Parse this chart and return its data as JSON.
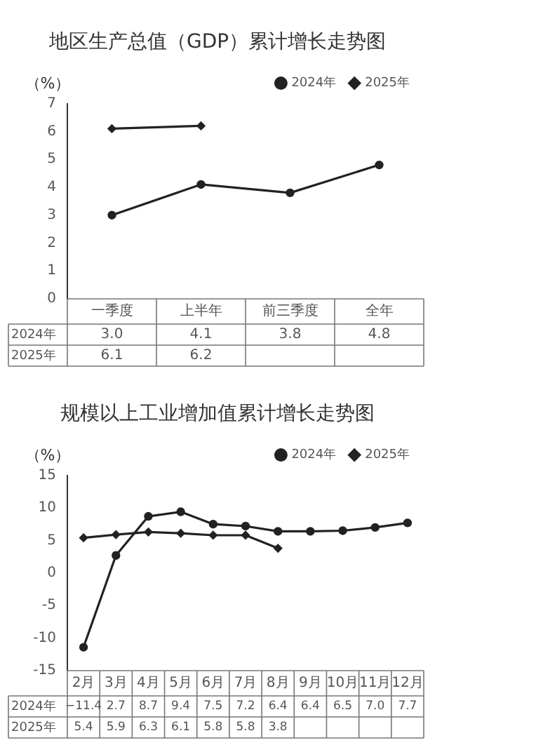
{
  "chart_data": [
    {
      "type": "line",
      "title": "地区生产总值（GDP）累计增长走势图",
      "ylabel": "（%）",
      "categories": [
        "一季度",
        "上半年",
        "前三季度",
        "全年"
      ],
      "ylim": [
        0,
        7
      ],
      "yticks": [
        0,
        1,
        2,
        3,
        4,
        5,
        6,
        7
      ],
      "grid": false,
      "legend": "top right",
      "line_style": "solid",
      "series": [
        {
          "name": "2024年",
          "color": "#222222",
          "marker": "circle",
          "values": [
            3.0,
            4.1,
            3.8,
            4.8
          ],
          "value_labels": [
            "3.0",
            "4.1",
            "3.8",
            "4.8"
          ]
        },
        {
          "name": "2025年",
          "color": "#222222",
          "marker": "diamond",
          "values": [
            6.1,
            6.2,
            null,
            null
          ],
          "value_labels": [
            "6.1",
            "6.2",
            null,
            null
          ]
        }
      ]
    },
    {
      "type": "line",
      "title": "规模以上工业增加值累计增长走势图",
      "ylabel": "（%）",
      "categories": [
        "2月",
        "3月",
        "4月",
        "5月",
        "6月",
        "7月",
        "8月",
        "9月",
        "10月",
        "11月",
        "12月"
      ],
      "ylim": [
        -15,
        15
      ],
      "yticks": [
        -15,
        -10,
        -5,
        0,
        5,
        10,
        15
      ],
      "grid": false,
      "legend": "top right",
      "line_style": "solid",
      "series": [
        {
          "name": "2024年",
          "color": "#222222",
          "marker": "circle",
          "values": [
            -11.4,
            2.7,
            8.7,
            9.4,
            7.5,
            7.2,
            6.4,
            6.4,
            6.5,
            7.0,
            7.7
          ],
          "value_labels": [
            "−11.4",
            "2.7",
            "8.7",
            "9.4",
            "7.5",
            "7.2",
            "6.4",
            "6.4",
            "6.5",
            "7.0",
            "7.7"
          ]
        },
        {
          "name": "2025年",
          "color": "#222222",
          "marker": "diamond",
          "values": [
            5.4,
            5.9,
            6.3,
            6.1,
            5.8,
            5.8,
            3.8,
            null,
            null,
            null,
            null
          ],
          "value_labels": [
            "5.4",
            "5.9",
            "6.3",
            "6.1",
            "5.8",
            "5.8",
            "3.8",
            null,
            null,
            null,
            null
          ]
        }
      ]
    }
  ]
}
